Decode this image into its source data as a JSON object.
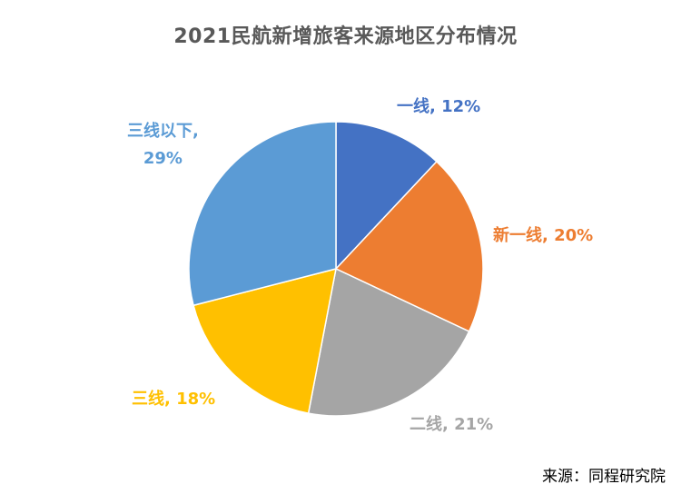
{
  "source": "来源：同程研究院",
  "chart_data": {
    "type": "pie",
    "title": "2021民航新增旅客来源地区分布情况",
    "slices": [
      {
        "name": "一线",
        "value": 12,
        "label": "一线, 12%",
        "color": "#4472C4"
      },
      {
        "name": "新一线",
        "value": 20,
        "label": "新一线, 20%",
        "color": "#ED7D31"
      },
      {
        "name": "二线",
        "value": 21,
        "label": "二线, 21%",
        "color": "#A5A5A5"
      },
      {
        "name": "三线",
        "value": 18,
        "label": "三线, 18%",
        "color": "#FFC000"
      },
      {
        "name": "三线以下",
        "value": 29,
        "label_lines": [
          "三线以下,",
          "29%"
        ],
        "color": "#5B9BD5"
      }
    ],
    "start_angle_deg": 0,
    "direction": "clockwise",
    "legend": "none"
  }
}
